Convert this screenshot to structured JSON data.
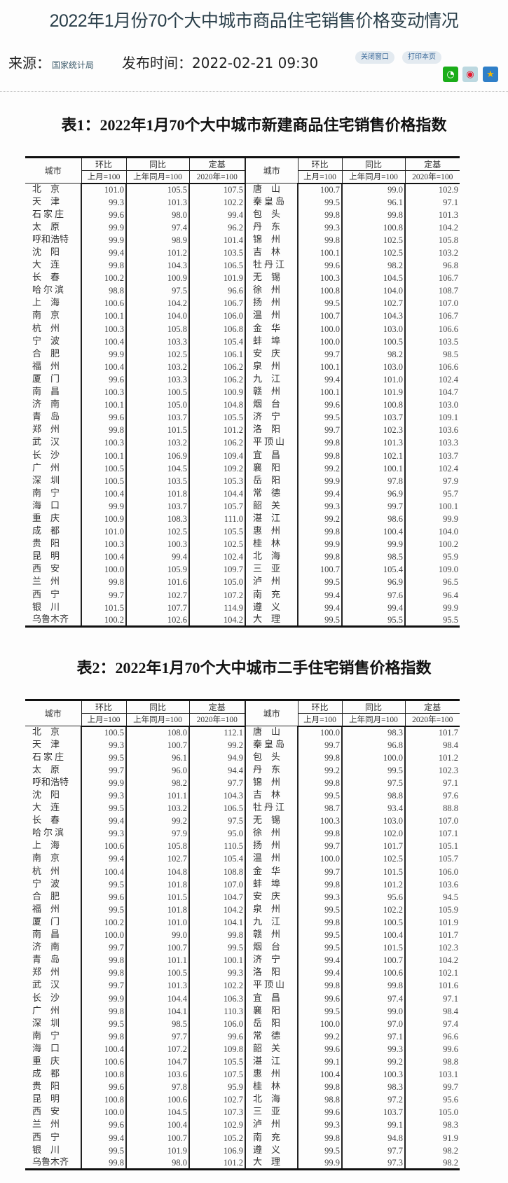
{
  "header": {
    "title": "2022年1月份70个大中城市商品住宅销售价格变动情况",
    "source_label": "来源：",
    "source": "国家统计局",
    "time_label": "发布时间：",
    "time": "2022-02-21 09:30",
    "close_button": "关闭窗口",
    "print_button": "打印本页",
    "share_icons": [
      "wechat-icon",
      "weibo-icon",
      "qzone-icon"
    ],
    "colors": {
      "wechat": "#1aad19",
      "weibo": "#e6162d",
      "qzone": "#f5b800"
    }
  },
  "headers": {
    "city": "城市",
    "mom": "环比",
    "mom_base": "上月=100",
    "yoy": "同比",
    "yoy_base": "上年同月=100",
    "fixed": "定基",
    "fixed_base": "2020年=100"
  },
  "tables": [
    {
      "title": "表1：2022年1月70个大中城市新建商品住宅销售价格指数",
      "rows": [
        [
          "北京",
          "101.0",
          "105.5",
          "107.5",
          "唐山",
          "100.7",
          "99.0",
          "102.9"
        ],
        [
          "天津",
          "99.3",
          "101.3",
          "102.2",
          "秦皇岛",
          "99.5",
          "96.1",
          "97.1"
        ],
        [
          "石家庄",
          "99.6",
          "98.0",
          "99.4",
          "包头",
          "99.8",
          "99.8",
          "101.3"
        ],
        [
          "太原",
          "99.9",
          "97.4",
          "96.2",
          "丹东",
          "99.3",
          "100.8",
          "104.2"
        ],
        [
          "呼和浩特",
          "99.9",
          "98.9",
          "101.4",
          "锦州",
          "99.8",
          "102.5",
          "105.8"
        ],
        [
          "沈阳",
          "99.4",
          "101.2",
          "103.5",
          "吉林",
          "100.1",
          "102.5",
          "103.2"
        ],
        [
          "大连",
          "99.8",
          "104.3",
          "106.5",
          "牡丹江",
          "99.6",
          "98.2",
          "96.8"
        ],
        [
          "长春",
          "100.2",
          "100.9",
          "101.9",
          "无锡",
          "100.3",
          "104.5",
          "106.7"
        ],
        [
          "哈尔滨",
          "98.8",
          "97.5",
          "96.6",
          "徐州",
          "100.8",
          "104.0",
          "108.7"
        ],
        [
          "上海",
          "100.6",
          "104.2",
          "106.7",
          "扬州",
          "99.5",
          "102.7",
          "107.0"
        ],
        [
          "南京",
          "100.1",
          "104.0",
          "106.0",
          "温州",
          "100.7",
          "104.3",
          "106.7"
        ],
        [
          "杭州",
          "100.3",
          "105.8",
          "106.8",
          "金华",
          "100.0",
          "103.0",
          "106.6"
        ],
        [
          "宁波",
          "100.4",
          "103.3",
          "105.4",
          "蚌埠",
          "100.0",
          "100.5",
          "103.5"
        ],
        [
          "合肥",
          "99.9",
          "102.5",
          "106.1",
          "安庆",
          "99.7",
          "98.2",
          "98.5"
        ],
        [
          "福州",
          "100.4",
          "103.2",
          "106.2",
          "泉州",
          "100.1",
          "103.0",
          "106.6"
        ],
        [
          "厦门",
          "99.6",
          "103.3",
          "106.2",
          "九江",
          "99.4",
          "101.0",
          "102.4"
        ],
        [
          "南昌",
          "100.3",
          "100.5",
          "100.9",
          "赣州",
          "100.1",
          "101.9",
          "104.7"
        ],
        [
          "济南",
          "100.1",
          "105.0",
          "104.8",
          "烟台",
          "99.6",
          "100.8",
          "103.0"
        ],
        [
          "青岛",
          "99.6",
          "103.7",
          "105.5",
          "济宁",
          "99.5",
          "103.7",
          "109.1"
        ],
        [
          "郑州",
          "99.8",
          "101.5",
          "101.2",
          "洛阳",
          "99.7",
          "102.3",
          "103.6"
        ],
        [
          "武汉",
          "100.3",
          "103.2",
          "106.2",
          "平顶山",
          "99.8",
          "101.3",
          "103.3"
        ],
        [
          "长沙",
          "100.1",
          "106.9",
          "109.4",
          "宜昌",
          "99.8",
          "102.1",
          "103.7"
        ],
        [
          "广州",
          "100.5",
          "104.5",
          "109.2",
          "襄阳",
          "99.2",
          "100.1",
          "102.4"
        ],
        [
          "深圳",
          "100.5",
          "103.5",
          "105.3",
          "岳阳",
          "99.9",
          "97.8",
          "97.9"
        ],
        [
          "南宁",
          "100.4",
          "101.8",
          "104.4",
          "常德",
          "99.4",
          "96.9",
          "95.7"
        ],
        [
          "海口",
          "99.9",
          "103.7",
          "105.7",
          "韶关",
          "99.3",
          "99.7",
          "100.1"
        ],
        [
          "重庆",
          "100.9",
          "108.3",
          "111.0",
          "湛江",
          "99.2",
          "98.6",
          "99.9"
        ],
        [
          "成都",
          "101.0",
          "102.5",
          "105.5",
          "惠州",
          "99.8",
          "100.4",
          "104.0"
        ],
        [
          "贵阳",
          "100.3",
          "100.3",
          "102.5",
          "桂林",
          "99.9",
          "99.9",
          "100.2"
        ],
        [
          "昆明",
          "100.4",
          "99.4",
          "102.4",
          "北海",
          "99.8",
          "98.5",
          "95.9"
        ],
        [
          "西安",
          "100.0",
          "105.9",
          "109.7",
          "三亚",
          "100.7",
          "105.4",
          "109.0"
        ],
        [
          "兰州",
          "99.8",
          "101.6",
          "105.0",
          "泸州",
          "99.5",
          "96.9",
          "96.5"
        ],
        [
          "西宁",
          "99.7",
          "102.7",
          "107.2",
          "南充",
          "99.4",
          "97.6",
          "96.4"
        ],
        [
          "银川",
          "101.5",
          "107.7",
          "114.9",
          "遵义",
          "99.4",
          "99.4",
          "99.9"
        ],
        [
          "乌鲁木齐",
          "100.2",
          "102.6",
          "104.2",
          "大理",
          "99.5",
          "95.5",
          "95.5"
        ]
      ]
    },
    {
      "title": "表2：2022年1月70个大中城市二手住宅销售价格指数",
      "rows": [
        [
          "北京",
          "100.5",
          "108.0",
          "112.1",
          "唐山",
          "100.0",
          "98.3",
          "101.7"
        ],
        [
          "天津",
          "99.3",
          "100.7",
          "99.2",
          "秦皇岛",
          "99.7",
          "96.8",
          "98.4"
        ],
        [
          "石家庄",
          "99.5",
          "96.1",
          "94.9",
          "包头",
          "99.8",
          "100.0",
          "101.2"
        ],
        [
          "太原",
          "99.7",
          "96.0",
          "94.4",
          "丹东",
          "99.2",
          "99.5",
          "102.3"
        ],
        [
          "呼和浩特",
          "99.9",
          "98.2",
          "97.7",
          "锦州",
          "99.8",
          "97.5",
          "97.1"
        ],
        [
          "沈阳",
          "99.3",
          "101.1",
          "104.3",
          "吉林",
          "99.5",
          "98.8",
          "97.6"
        ],
        [
          "大连",
          "99.5",
          "103.2",
          "106.5",
          "牡丹江",
          "98.7",
          "93.4",
          "88.8"
        ],
        [
          "长春",
          "99.4",
          "99.2",
          "97.5",
          "无锡",
          "100.3",
          "103.0",
          "107.0"
        ],
        [
          "哈尔滨",
          "99.3",
          "97.9",
          "95.0",
          "徐州",
          "99.8",
          "102.0",
          "107.1"
        ],
        [
          "上海",
          "100.6",
          "105.8",
          "110.5",
          "扬州",
          "99.7",
          "101.7",
          "105.1"
        ],
        [
          "南京",
          "99.4",
          "102.7",
          "105.4",
          "温州",
          "100.0",
          "102.5",
          "105.7"
        ],
        [
          "杭州",
          "100.4",
          "104.8",
          "108.8",
          "金华",
          "99.7",
          "101.5",
          "106.0"
        ],
        [
          "宁波",
          "99.5",
          "101.8",
          "107.0",
          "蚌埠",
          "99.8",
          "101.2",
          "103.6"
        ],
        [
          "合肥",
          "99.6",
          "101.5",
          "104.7",
          "安庆",
          "99.3",
          "95.6",
          "94.5"
        ],
        [
          "福州",
          "99.5",
          "101.8",
          "104.2",
          "泉州",
          "99.5",
          "102.2",
          "105.9"
        ],
        [
          "厦门",
          "100.2",
          "101.0",
          "104.1",
          "九江",
          "99.8",
          "100.5",
          "101.9"
        ],
        [
          "南昌",
          "100.0",
          "99.0",
          "99.8",
          "赣州",
          "99.5",
          "100.4",
          "101.7"
        ],
        [
          "济南",
          "99.7",
          "100.7",
          "99.5",
          "烟台",
          "99.5",
          "101.5",
          "102.3"
        ],
        [
          "青岛",
          "99.8",
          "101.1",
          "100.1",
          "济宁",
          "99.4",
          "100.7",
          "104.2"
        ],
        [
          "郑州",
          "99.8",
          "100.5",
          "99.3",
          "洛阳",
          "99.4",
          "100.6",
          "102.1"
        ],
        [
          "武汉",
          "99.7",
          "101.3",
          "102.2",
          "平顶山",
          "99.8",
          "99.8",
          "101.6"
        ],
        [
          "长沙",
          "99.9",
          "104.4",
          "106.3",
          "宜昌",
          "99.6",
          "97.4",
          "97.1"
        ],
        [
          "广州",
          "99.8",
          "104.1",
          "110.3",
          "襄阳",
          "99.5",
          "99.0",
          "98.4"
        ],
        [
          "深圳",
          "99.5",
          "98.5",
          "106.0",
          "岳阳",
          "100.0",
          "97.0",
          "97.4"
        ],
        [
          "南宁",
          "99.8",
          "97.7",
          "99.6",
          "常德",
          "99.2",
          "97.1",
          "96.6"
        ],
        [
          "海口",
          "100.4",
          "107.2",
          "109.8",
          "韶关",
          "99.6",
          "99.3",
          "99.6"
        ],
        [
          "重庆",
          "100.6",
          "104.7",
          "105.5",
          "湛江",
          "99.1",
          "99.2",
          "98.8"
        ],
        [
          "成都",
          "100.8",
          "103.6",
          "107.5",
          "惠州",
          "100.4",
          "100.3",
          "103.1"
        ],
        [
          "贵阳",
          "99.6",
          "97.8",
          "95.9",
          "桂林",
          "99.8",
          "98.3",
          "99.7"
        ],
        [
          "昆明",
          "100.8",
          "100.6",
          "102.7",
          "北海",
          "98.8",
          "97.2",
          "95.6"
        ],
        [
          "西安",
          "100.0",
          "104.5",
          "107.3",
          "三亚",
          "99.6",
          "103.7",
          "105.0"
        ],
        [
          "兰州",
          "99.6",
          "100.4",
          "102.9",
          "泸州",
          "99.3",
          "99.1",
          "98.3"
        ],
        [
          "西宁",
          "99.4",
          "100.7",
          "105.2",
          "南充",
          "99.8",
          "94.8",
          "91.9"
        ],
        [
          "银川",
          "99.5",
          "101.9",
          "106.9",
          "遵义",
          "99.5",
          "97.7",
          "98.2"
        ],
        [
          "乌鲁木齐",
          "99.8",
          "98.0",
          "101.2",
          "大理",
          "99.9",
          "97.3",
          "98.2"
        ]
      ]
    }
  ]
}
